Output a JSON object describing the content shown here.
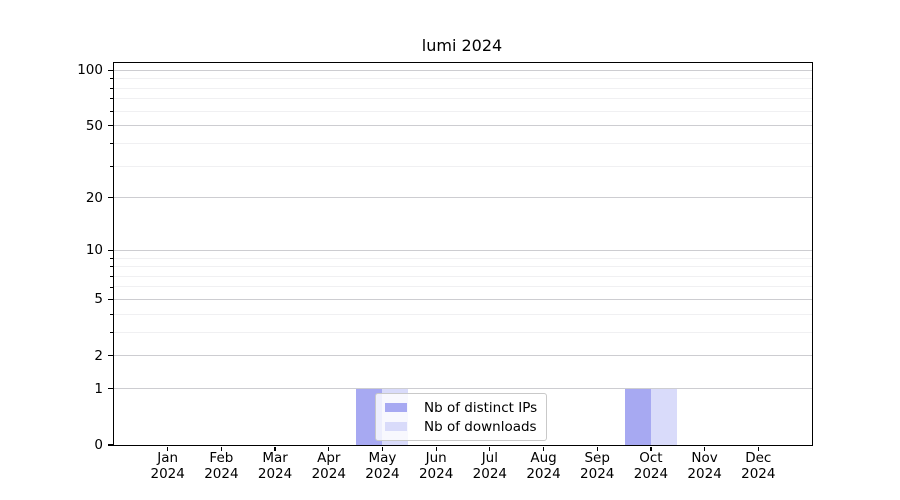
{
  "chart_data": {
    "type": "bar",
    "title": "lumi 2024",
    "x": {
      "months": [
        "Jan",
        "Feb",
        "Mar",
        "Apr",
        "May",
        "Jun",
        "Jul",
        "Aug",
        "Sep",
        "Oct",
        "Nov",
        "Dec"
      ],
      "year": "2024"
    },
    "series": [
      {
        "name": "Nb of distinct IPs",
        "color": "#a7a9f2",
        "values": [
          0,
          0,
          0,
          0,
          1,
          0,
          0,
          0,
          0,
          1,
          0,
          0
        ]
      },
      {
        "name": "Nb of downloads",
        "color": "#d9dbfa",
        "values": [
          0,
          0,
          0,
          0,
          1,
          0,
          0,
          0,
          0,
          1,
          0,
          0
        ]
      }
    ],
    "yscale": "log1p",
    "yticks": [
      0,
      1,
      2,
      5,
      10,
      20,
      50,
      100
    ],
    "minor_yticks": [
      3,
      4,
      6,
      7,
      8,
      9,
      30,
      40,
      60,
      70,
      80,
      90
    ],
    "ylim": [
      0,
      110
    ],
    "grid": true,
    "legend_position": "lower-center"
  },
  "colors": {
    "axis": "#000000",
    "grid_major": "#cdcdd1",
    "grid_minor": "#f0f0f2",
    "bar_distinct_ips": "#a7a9f2",
    "bar_downloads": "#d9dbfa",
    "legend_border": "#c9c9c9"
  }
}
